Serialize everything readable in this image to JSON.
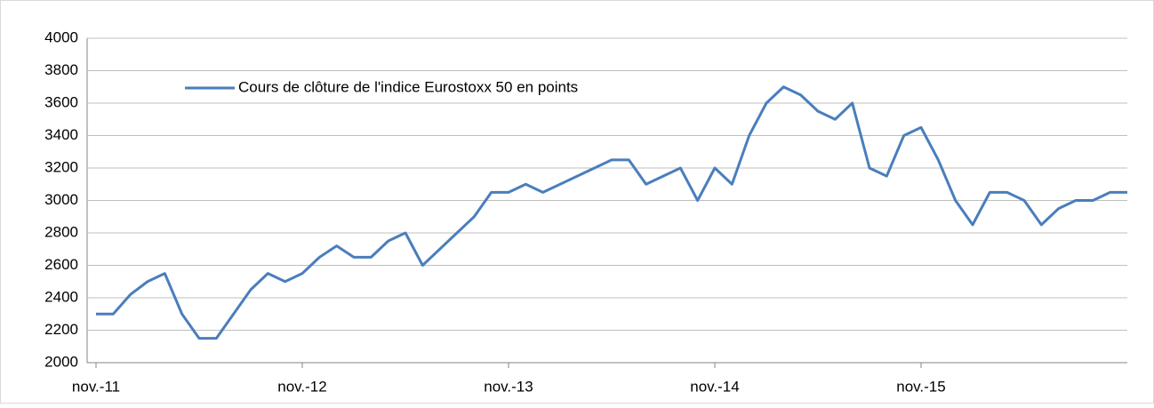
{
  "chart_data": {
    "type": "line",
    "categories": [
      "nov.-11",
      null,
      null,
      null,
      null,
      null,
      null,
      null,
      null,
      null,
      null,
      null,
      "nov.-12",
      null,
      null,
      null,
      null,
      null,
      null,
      null,
      null,
      null,
      null,
      null,
      "nov.-13",
      null,
      null,
      null,
      null,
      null,
      null,
      null,
      null,
      null,
      null,
      null,
      "nov.-14",
      null,
      null,
      null,
      null,
      null,
      null,
      null,
      null,
      null,
      null,
      null,
      "nov.-15",
      null,
      null,
      null,
      null,
      null,
      null,
      null,
      null,
      null,
      null,
      null,
      null
    ],
    "series": [
      {
        "name": "Cours de clôture de l'indice Eurostoxx 50 en points",
        "color": "#4a7ebb",
        "values": [
          2300,
          2300,
          2420,
          2500,
          2550,
          2300,
          2150,
          2150,
          2300,
          2450,
          2550,
          2500,
          2550,
          2650,
          2720,
          2650,
          2650,
          2750,
          2800,
          2600,
          2700,
          2800,
          2900,
          3050,
          3050,
          3100,
          3050,
          3100,
          3150,
          3200,
          3250,
          3250,
          3100,
          3150,
          3200,
          3000,
          3200,
          3100,
          3400,
          3600,
          3700,
          3650,
          3550,
          3500,
          3600,
          3200,
          3150,
          3400,
          3450,
          3250,
          3000,
          2850,
          3050,
          3050,
          3000,
          2850,
          2950,
          3000,
          3000,
          3050,
          3050
        ]
      }
    ],
    "ylim": [
      2000,
      4000
    ],
    "yticks": [
      2000,
      2200,
      2400,
      2600,
      2800,
      3000,
      3200,
      3400,
      3600,
      3800,
      4000
    ],
    "grid": true,
    "legend": "top-left"
  }
}
